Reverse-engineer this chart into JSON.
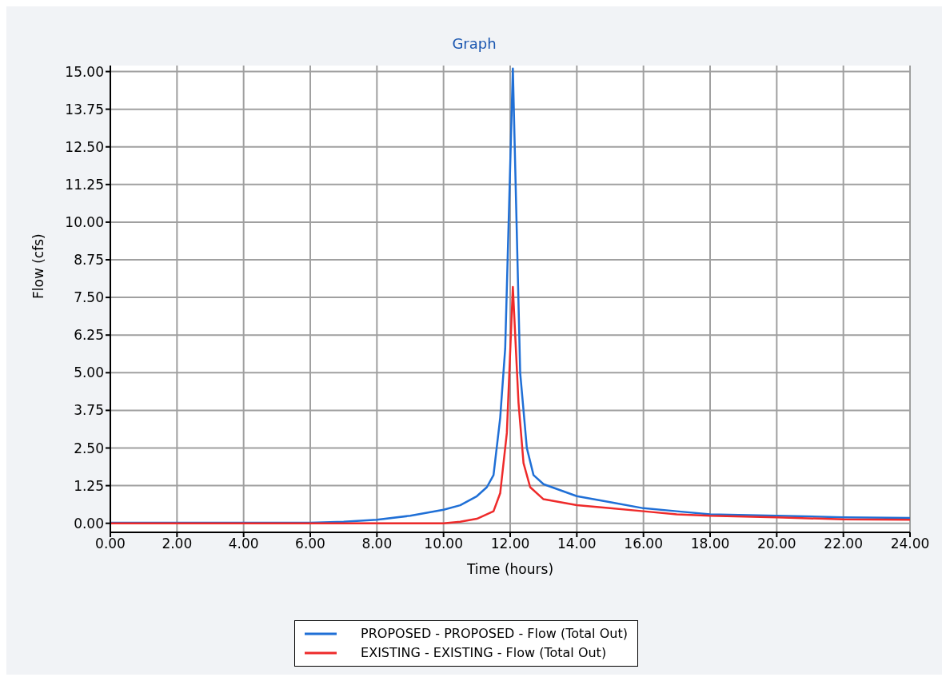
{
  "chart_data": {
    "type": "line",
    "title": "Graph",
    "xlabel": "Time (hours)",
    "ylabel": "Flow (cfs)",
    "xlim": [
      0,
      24
    ],
    "xticks": [
      {
        "value": 0,
        "label": "0.00"
      },
      {
        "value": 2,
        "label": "2.00"
      },
      {
        "value": 4,
        "label": "4.00"
      },
      {
        "value": 6,
        "label": "6.00"
      },
      {
        "value": 8,
        "label": "8.00"
      },
      {
        "value": 10,
        "label": "10.00"
      },
      {
        "value": 12,
        "label": "12.00"
      },
      {
        "value": 14,
        "label": "14.00"
      },
      {
        "value": 16,
        "label": "16.00"
      },
      {
        "value": 18,
        "label": "18.00"
      },
      {
        "value": 20,
        "label": "20.00"
      },
      {
        "value": 22,
        "label": "22.00"
      },
      {
        "value": 24,
        "label": "24.00"
      }
    ],
    "ylim": [
      -0.3,
      15.2
    ],
    "yticks": [
      {
        "value": 0,
        "label": "0.00"
      },
      {
        "value": 1.25,
        "label": "1.25"
      },
      {
        "value": 2.5,
        "label": "2.50"
      },
      {
        "value": 3.75,
        "label": "3.75"
      },
      {
        "value": 5,
        "label": "5.00"
      },
      {
        "value": 6.25,
        "label": "6.25"
      },
      {
        "value": 7.5,
        "label": "7.50"
      },
      {
        "value": 8.75,
        "label": "8.75"
      },
      {
        "value": 10,
        "label": "10.00"
      },
      {
        "value": 11.25,
        "label": "11.25"
      },
      {
        "value": 12.5,
        "label": "12.50"
      },
      {
        "value": 13.75,
        "label": "13.75"
      },
      {
        "value": 15,
        "label": "15.00"
      }
    ],
    "grid": true,
    "legend": "bottom",
    "marker": "none",
    "line_style": "solid",
    "series": [
      {
        "name": "PROPOSED - PROPOSED - Flow (Total Out)",
        "color": "#1f6fd6",
        "x": [
          0,
          6,
          7,
          8,
          9,
          10,
          10.5,
          11,
          11.3,
          11.5,
          11.7,
          11.85,
          12.08,
          12.3,
          12.5,
          12.7,
          13,
          13.5,
          14,
          15,
          16,
          17,
          18,
          20,
          22,
          24
        ],
        "values": [
          0.02,
          0.02,
          0.05,
          0.12,
          0.25,
          0.45,
          0.6,
          0.9,
          1.2,
          1.6,
          3.5,
          5.8,
          15.1,
          5,
          2.5,
          1.6,
          1.3,
          1.1,
          0.9,
          0.7,
          0.5,
          0.4,
          0.3,
          0.25,
          0.2,
          0.18
        ]
      },
      {
        "name": "EXISTING - EXISTING - Flow (Total Out)",
        "color": "#ee2a2a",
        "x": [
          0,
          10,
          10.5,
          11,
          11.5,
          11.7,
          11.9,
          12.08,
          12.25,
          12.4,
          12.6,
          13,
          14,
          15,
          16,
          17,
          18,
          20,
          22,
          24
        ],
        "values": [
          0,
          0,
          0.05,
          0.15,
          0.4,
          1,
          3,
          7.85,
          4,
          2,
          1.2,
          0.8,
          0.6,
          0.5,
          0.4,
          0.3,
          0.25,
          0.2,
          0.13,
          0.12
        ]
      }
    ]
  }
}
